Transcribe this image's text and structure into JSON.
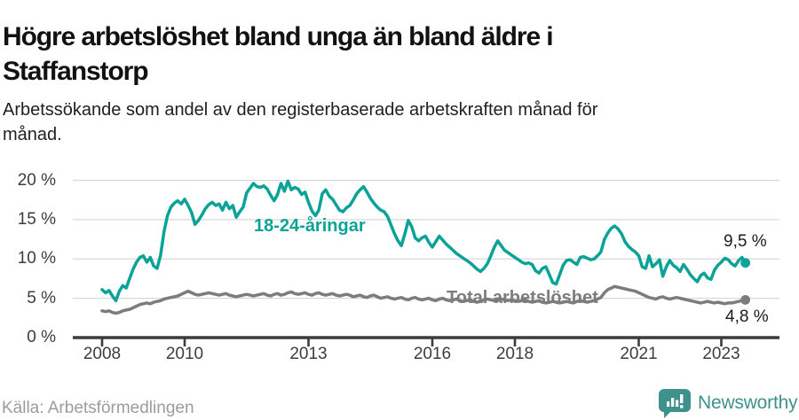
{
  "header": {
    "title_lines": [
      "Högre arbetslöshet bland unga än bland äldre i",
      "Staffanstorp"
    ],
    "subtitle_lines": [
      "Arbetssökande som andel av den registerbaserade arbetskraften månad för",
      "månad."
    ]
  },
  "chart_data": {
    "type": "line",
    "title": "Högre arbetslöshet bland unga än bland äldre i Staffanstorp",
    "subtitle": "Arbetssökande som andel av den registerbaserade arbetskraften månad för månad.",
    "unit": "%",
    "x_frequency": "monthly",
    "x_start_year": 2008,
    "ylim": [
      0,
      21
    ],
    "grid": "horizontal",
    "legend_position": "inline-labels",
    "yticks": [
      {
        "label": "0 %",
        "value": 0
      },
      {
        "label": "5 %",
        "value": 5
      },
      {
        "label": "10 %",
        "value": 10
      },
      {
        "label": "15 %",
        "value": 15
      },
      {
        "label": "20 %",
        "value": 20
      }
    ],
    "xticks": [
      {
        "label": "2008",
        "year": 2008
      },
      {
        "label": "2010",
        "year": 2010
      },
      {
        "label": "2013",
        "year": 2013
      },
      {
        "label": "2016",
        "year": 2016
      },
      {
        "label": "2018",
        "year": 2018
      },
      {
        "label": "2021",
        "year": 2021
      },
      {
        "label": "2023",
        "year": 2023
      }
    ],
    "series": [
      {
        "name": "18-24-åringar",
        "color": "#0ba398",
        "end_label": "9,5 %",
        "end_value": 9.5,
        "values": [
          6.1,
          5.7,
          6.0,
          5.3,
          4.7,
          5.9,
          6.6,
          6.3,
          7.5,
          8.7,
          9.6,
          10.2,
          10.4,
          9.6,
          10.2,
          9.1,
          8.8,
          10.5,
          13.5,
          15.5,
          16.6,
          17.1,
          17.4,
          17.0,
          17.6,
          16.8,
          15.9,
          14.4,
          14.9,
          15.6,
          16.4,
          16.9,
          17.2,
          16.8,
          17.0,
          16.2,
          17.2,
          16.4,
          16.8,
          15.3,
          16.0,
          16.6,
          18.4,
          19.0,
          19.6,
          19.2,
          19.1,
          19.3,
          18.9,
          18.1,
          17.4,
          18.2,
          19.6,
          18.6,
          19.9,
          18.8,
          19.1,
          18.9,
          18.2,
          18.5,
          17.2,
          16.1,
          15.5,
          16.2,
          18.3,
          18.8,
          18.0,
          17.6,
          16.9,
          16.2,
          16.0,
          16.5,
          16.8,
          17.5,
          18.3,
          18.8,
          19.2,
          18.5,
          17.7,
          17.1,
          16.6,
          16.2,
          16.0,
          15.4,
          14.3,
          13.2,
          12.3,
          11.7,
          13.2,
          14.9,
          14.1,
          12.7,
          12.3,
          12.7,
          12.9,
          12.1,
          11.5,
          12.2,
          12.9,
          12.4,
          11.9,
          11.5,
          11.1,
          10.7,
          10.4,
          10.1,
          9.8,
          9.5,
          9.1,
          8.7,
          8.4,
          8.8,
          9.4,
          10.4,
          11.5,
          12.3,
          11.7,
          11.1,
          10.8,
          10.5,
          10.2,
          9.9,
          9.6,
          9.4,
          9.5,
          9.3,
          8.5,
          8.2,
          8.8,
          9.0,
          8.0,
          7.0,
          6.8,
          8.0,
          9.2,
          9.8,
          9.9,
          9.6,
          9.3,
          10.2,
          10.3,
          10.1,
          9.9,
          10.0,
          10.4,
          10.9,
          12.5,
          13.3,
          13.9,
          14.2,
          13.8,
          13.2,
          12.2,
          11.6,
          11.2,
          10.9,
          10.4,
          9.0,
          8.8,
          10.4,
          9.0,
          9.4,
          9.9,
          7.8,
          9.0,
          9.8,
          9.2,
          8.9,
          8.4,
          9.3,
          8.7,
          8.0,
          7.5,
          7.1,
          7.9,
          8.2,
          7.6,
          7.4,
          8.6,
          9.2,
          9.6,
          10.1,
          9.9,
          9.4,
          9.1,
          9.8,
          10.2,
          9.5
        ]
      },
      {
        "name": "Total arbetslöshet",
        "color": "#7c7c7c",
        "end_label": "4,8 %",
        "end_value": 4.8,
        "values": [
          3.4,
          3.3,
          3.4,
          3.2,
          3.1,
          3.2,
          3.4,
          3.5,
          3.6,
          3.8,
          4.0,
          4.2,
          4.3,
          4.4,
          4.3,
          4.5,
          4.6,
          4.7,
          4.9,
          5.0,
          5.1,
          5.2,
          5.3,
          5.5,
          5.7,
          5.9,
          5.7,
          5.5,
          5.4,
          5.5,
          5.6,
          5.7,
          5.6,
          5.5,
          5.4,
          5.5,
          5.6,
          5.4,
          5.3,
          5.2,
          5.3,
          5.4,
          5.5,
          5.4,
          5.3,
          5.4,
          5.5,
          5.6,
          5.4,
          5.3,
          5.5,
          5.6,
          5.4,
          5.5,
          5.7,
          5.8,
          5.6,
          5.5,
          5.6,
          5.7,
          5.5,
          5.4,
          5.6,
          5.7,
          5.5,
          5.4,
          5.5,
          5.6,
          5.4,
          5.3,
          5.4,
          5.5,
          5.4,
          5.2,
          5.3,
          5.4,
          5.2,
          5.1,
          5.3,
          5.4,
          5.2,
          5.0,
          5.1,
          5.2,
          5.0,
          4.9,
          5.0,
          5.1,
          4.9,
          4.8,
          5.0,
          5.1,
          4.9,
          4.8,
          4.9,
          5.0,
          4.8,
          4.7,
          4.9,
          5.0,
          4.8,
          4.7,
          4.8,
          4.9,
          4.7,
          4.6,
          4.7,
          4.8,
          4.6,
          4.5,
          4.6,
          4.8,
          4.9,
          4.8,
          4.7,
          4.8,
          4.9,
          4.8,
          4.7,
          4.8,
          4.7,
          4.6,
          4.7,
          4.8,
          4.6,
          4.5,
          4.6,
          4.7,
          4.5,
          4.4,
          4.5,
          4.6,
          4.5,
          4.4,
          4.5,
          4.6,
          4.5,
          4.4,
          4.6,
          4.7,
          4.6,
          4.5,
          4.6,
          4.7,
          4.9,
          5.1,
          5.7,
          6.1,
          6.3,
          6.5,
          6.4,
          6.3,
          6.2,
          6.1,
          6.0,
          5.9,
          5.7,
          5.5,
          5.3,
          5.1,
          5.0,
          4.9,
          5.1,
          5.2,
          5.0,
          4.9,
          5.0,
          5.1,
          5.0,
          4.9,
          4.8,
          4.7,
          4.6,
          4.5,
          4.4,
          4.5,
          4.6,
          4.5,
          4.4,
          4.5,
          4.4,
          4.3,
          4.4,
          4.4,
          4.5,
          4.6,
          4.7,
          4.8
        ]
      }
    ],
    "colors": {
      "accent_teal": "#0ba398",
      "neutral_gray": "#7c7c7c",
      "gridline": "#d9d9d9",
      "axis": "#3c3c3c",
      "brand_teal": "#3f918d"
    }
  },
  "footer": {
    "source": "Källa: Arbetsförmedlingen",
    "brand": "Newsworthy"
  }
}
